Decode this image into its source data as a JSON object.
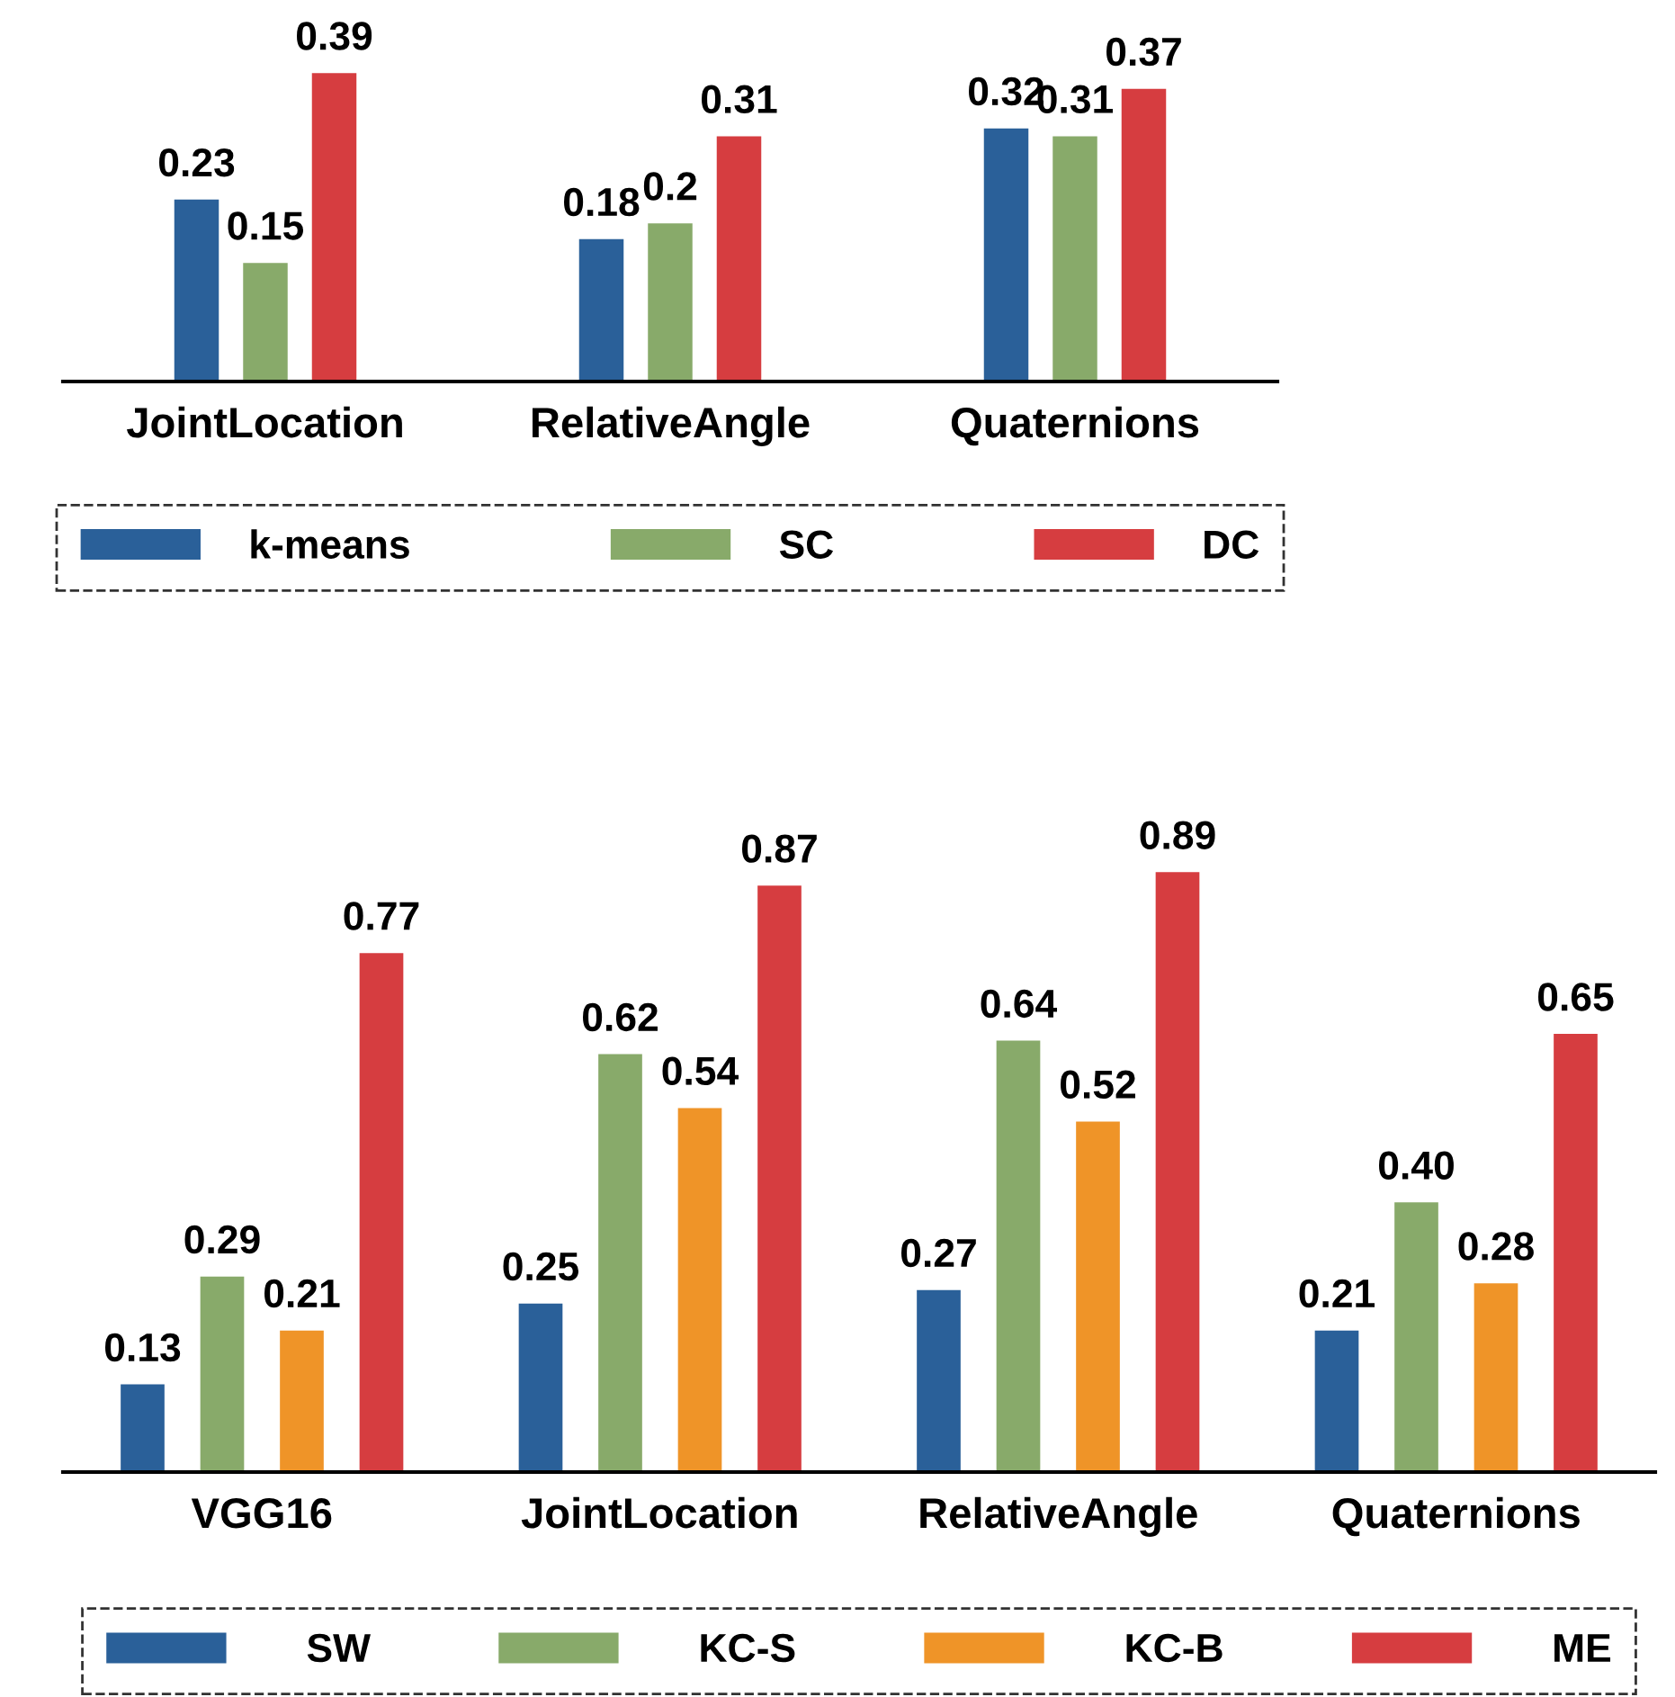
{
  "chart_data": [
    {
      "type": "bar",
      "categories": [
        "JointLocation",
        "RelativeAngle",
        "Quaternions"
      ],
      "series": [
        {
          "name": "k-means",
          "color": "#2a6099",
          "values": [
            0.23,
            0.18,
            0.32
          ]
        },
        {
          "name": "SC",
          "color": "#88aa6a",
          "values": [
            0.15,
            0.2,
            0.31
          ]
        },
        {
          "name": "DC",
          "color": "#d63d40",
          "values": [
            0.39,
            0.31,
            0.37
          ]
        }
      ],
      "data_labels": true,
      "legend": "bottom",
      "tick_labels": "x",
      "grid": false
    },
    {
      "type": "bar",
      "categories": [
        "VGG16",
        "JointLocation",
        "RelativeAngle",
        "Quaternions"
      ],
      "series": [
        {
          "name": "SW",
          "color": "#2a6099",
          "values": [
            0.13,
            0.25,
            0.27,
            0.21
          ],
          "value_labels": [
            "0.13",
            "0.25",
            "0.27",
            "0.21"
          ]
        },
        {
          "name": "KC-S",
          "color": "#88aa6a",
          "values": [
            0.29,
            0.62,
            0.64,
            0.4
          ],
          "value_labels": [
            "0.29",
            "0.62",
            "0.64",
            "0.40"
          ]
        },
        {
          "name": "KC-B",
          "color": "#ef9428",
          "values": [
            0.21,
            0.54,
            0.52,
            0.28
          ],
          "value_labels": [
            "0.21",
            "0.54",
            "0.52",
            "0.28"
          ]
        },
        {
          "name": "ME",
          "color": "#d63d40",
          "values": [
            0.77,
            0.87,
            0.89,
            0.65
          ],
          "value_labels": [
            "0.77",
            "0.87",
            "0.89",
            "0.65"
          ]
        }
      ],
      "legend": "bottom",
      "tick_labels": "x",
      "grid": false
    }
  ]
}
